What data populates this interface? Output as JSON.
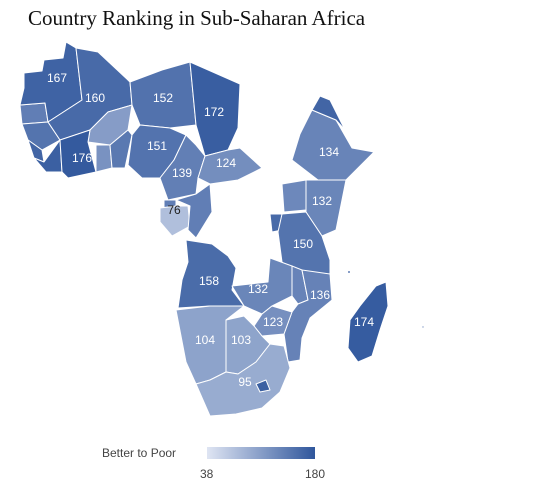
{
  "title": "Country Ranking in Sub-Saharan Africa",
  "legend": {
    "label": "Better to Poor",
    "min": "38",
    "max": "180"
  },
  "colors": {
    "low": "#dfe5f3",
    "high": "#2f569c",
    "border": "#ffffff"
  },
  "countries": [
    {
      "key": "mauritania",
      "value": 167
    },
    {
      "key": "mali",
      "value": 160
    },
    {
      "key": "niger",
      "value": 152
    },
    {
      "key": "chad",
      "value": 172
    },
    {
      "key": "nigeria",
      "value": 151
    },
    {
      "key": "cote-divoire",
      "value": 176
    },
    {
      "key": "cameroon",
      "value": 139
    },
    {
      "key": "car",
      "value": 124
    },
    {
      "key": "gabon",
      "value": 76
    },
    {
      "key": "ethiopia",
      "value": 134
    },
    {
      "key": "kenya",
      "value": 132
    },
    {
      "key": "tanzania",
      "value": 150
    },
    {
      "key": "angola",
      "value": 158
    },
    {
      "key": "zambia",
      "value": 132
    },
    {
      "key": "mozambique",
      "value": 136
    },
    {
      "key": "zimbabwe",
      "value": 123
    },
    {
      "key": "namibia",
      "value": 104
    },
    {
      "key": "botswana",
      "value": 103
    },
    {
      "key": "south-africa",
      "value": 95
    },
    {
      "key": "madagascar",
      "value": 174
    }
  ]
}
